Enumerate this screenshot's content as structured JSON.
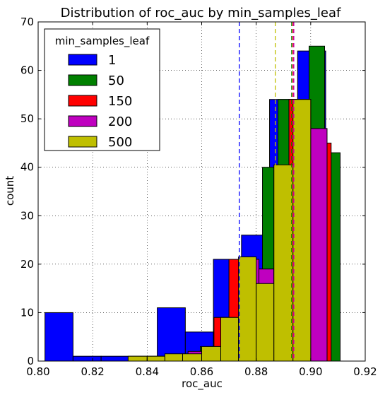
{
  "chart_data": {
    "type": "histogram",
    "title": "Distribution of roc_auc by min_samples_leaf",
    "xlabel": "roc_auc",
    "ylabel": "count",
    "xlim": [
      0.8,
      0.92
    ],
    "ylim": [
      0,
      70
    ],
    "xticks": [
      "0.80",
      "0.82",
      "0.84",
      "0.86",
      "0.88",
      "0.90",
      "0.92"
    ],
    "yticks": [
      "0",
      "10",
      "20",
      "30",
      "40",
      "50",
      "60",
      "70"
    ],
    "grid": true,
    "legend": {
      "title": "min_samples_leaf",
      "placement": "upper-left"
    },
    "series": [
      {
        "name": "1",
        "color": "#0000ff",
        "edges": [
          0.8025,
          0.8128,
          0.8231,
          0.8334,
          0.8437,
          0.854,
          0.8643,
          0.8746,
          0.8849,
          0.8952,
          0.9055
        ],
        "counts": [
          10,
          1,
          1,
          1,
          11,
          6,
          21,
          26,
          54,
          64
        ],
        "mean": 0.8738
      },
      {
        "name": "50",
        "color": "#008000",
        "edges": [
          0.8538,
          0.8595,
          0.8652,
          0.8709,
          0.8766,
          0.8823,
          0.888,
          0.8937,
          0.8994,
          0.9051,
          0.9108
        ],
        "counts": [
          1,
          3,
          9,
          21,
          17,
          40,
          54,
          53,
          65,
          43
        ],
        "mean": 0.893
      },
      {
        "name": "150",
        "color": "#ff0000",
        "edges": [
          0.8535,
          0.859,
          0.8645,
          0.87,
          0.8755,
          0.881,
          0.8865,
          0.892,
          0.8975,
          0.903,
          0.9075
        ],
        "counts": [
          1,
          2,
          9,
          21,
          16,
          19,
          40,
          54,
          48,
          45
        ],
        "mean": 0.8935
      },
      {
        "name": "200",
        "color": "#bf00bf",
        "edges": [
          0.8335,
          0.841,
          0.848,
          0.855,
          0.861,
          0.867,
          0.874,
          0.881,
          0.8865,
          0.894,
          0.9,
          0.906
        ],
        "counts": [
          1,
          1,
          1,
          2,
          3,
          9,
          21,
          19,
          40,
          54,
          48
        ],
        "mean": 0.8938
      },
      {
        "name": "500",
        "color": "#bfbf00",
        "edges": [
          0.833,
          0.84,
          0.8465,
          0.853,
          0.86,
          0.867,
          0.8735,
          0.88,
          0.8865,
          0.8935,
          0.9
        ],
        "counts": [
          1,
          1,
          1.5,
          1.5,
          3,
          9,
          21.5,
          16,
          40.5,
          54
        ],
        "mean": 0.887
      }
    ]
  }
}
